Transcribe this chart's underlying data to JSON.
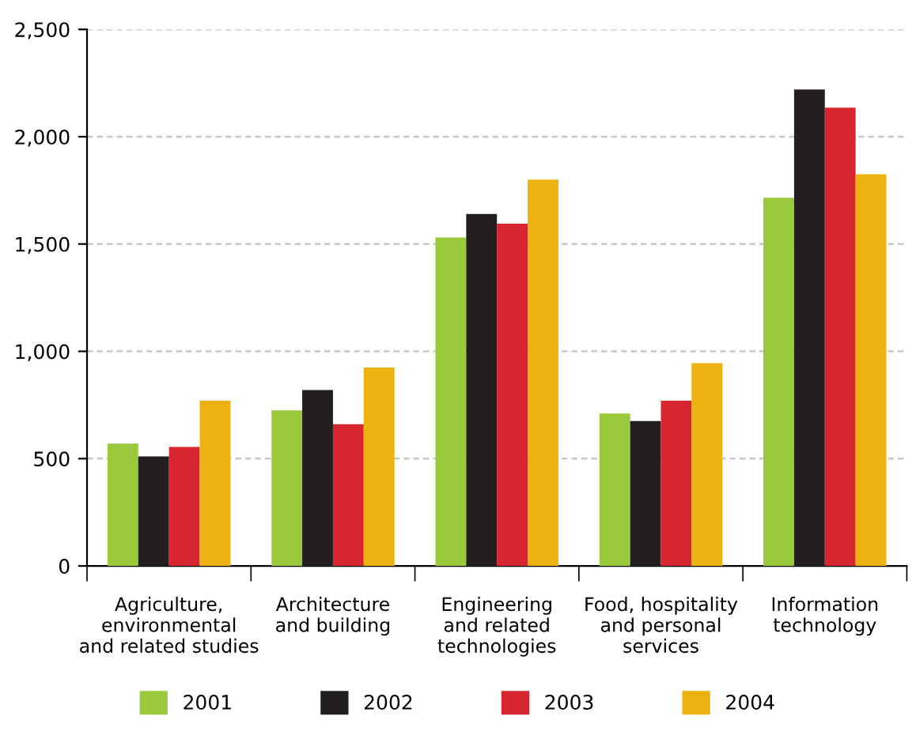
{
  "chart_data": {
    "type": "bar",
    "categories": [
      "Agriculture,\nenvironmental\nand related studies",
      "Architecture\nand building",
      "Engineering\nand related\ntechnologies",
      "Food, hospitality\nand personal\nservices",
      "Information\ntechnology"
    ],
    "series": [
      {
        "name": "2001",
        "color": "#9aca3c",
        "values": [
          570,
          725,
          1530,
          710,
          1715
        ]
      },
      {
        "name": "2002",
        "color": "#231f20",
        "values": [
          510,
          820,
          1640,
          675,
          2220
        ]
      },
      {
        "name": "2003",
        "color": "#d7262f",
        "values": [
          555,
          660,
          1595,
          770,
          2135
        ]
      },
      {
        "name": "2004",
        "color": "#edb111",
        "values": [
          770,
          925,
          1800,
          945,
          1825
        ]
      }
    ],
    "ylim": [
      0,
      2500
    ],
    "yticks": [
      0,
      {
        "value": 500,
        "label": "500"
      },
      {
        "value": 1000,
        "label": "1,000"
      },
      {
        "value": 1500,
        "label": "1,500"
      },
      {
        "value": 2000,
        "label": "2,000"
      },
      {
        "value": 2500,
        "label": "2,500"
      }
    ],
    "grid": "y",
    "legend": "bottom"
  }
}
